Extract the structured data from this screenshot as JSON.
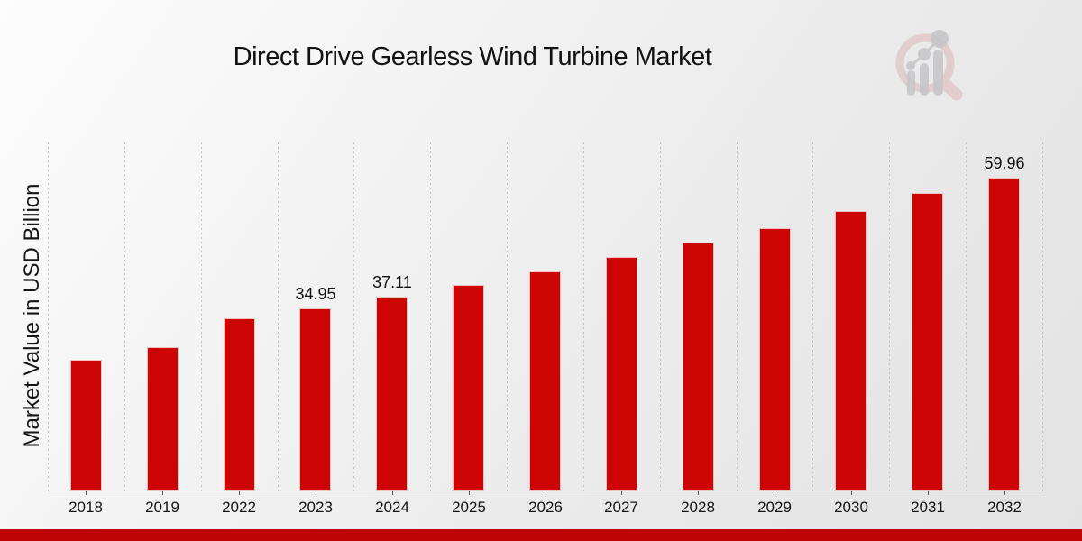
{
  "header": {
    "title": "Direct Drive Gearless Wind Turbine Market"
  },
  "logo": {
    "name": "market-research-magnifier-logo",
    "ring_color": "#ddb6b6",
    "glyph_color": "#c5c5c9"
  },
  "chart_data": {
    "type": "bar",
    "title": "Direct Drive Gearless Wind Turbine Market",
    "xlabel": "",
    "ylabel": "Market Value in USD Billion",
    "categories": [
      "2018",
      "2019",
      "2022",
      "2023",
      "2024",
      "2025",
      "2026",
      "2027",
      "2028",
      "2029",
      "2030",
      "2031",
      "2032"
    ],
    "values": [
      25.1,
      27.5,
      33.0,
      34.95,
      37.11,
      39.4,
      42.0,
      44.8,
      47.6,
      50.3,
      53.6,
      57.1,
      59.96
    ],
    "data_labels": [
      "",
      "",
      "",
      "34.95",
      "37.11",
      "",
      "",
      "",
      "",
      "",
      "",
      "",
      "59.96"
    ],
    "ylim": [
      0,
      66.7
    ],
    "grid": "vertical-dotted",
    "legend": "none",
    "bar_color": "#cc0404"
  },
  "colors": {
    "accent_red": "#cc0404",
    "footer_band": "#bd0303",
    "grid_gray": "#c3c3c3",
    "text_dark": "#121212"
  }
}
